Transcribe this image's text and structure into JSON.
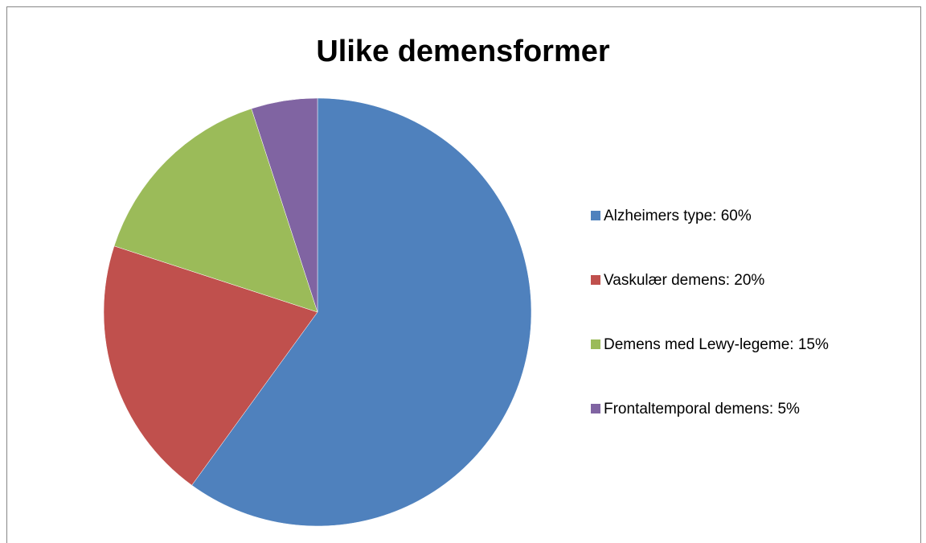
{
  "chart_data": {
    "type": "pie",
    "title": "Ulike demensformer",
    "categories": [
      "Alzheimers type: 60%",
      "Vaskulær demens: 20%",
      "Demens med Lewy-legeme: 15%",
      "Frontaltemporal demens: 5%"
    ],
    "values": [
      60,
      20,
      15,
      5
    ],
    "colors": [
      "#4f81bd",
      "#c0504d",
      "#9bbb59",
      "#8064a2"
    ],
    "legend": "right"
  }
}
